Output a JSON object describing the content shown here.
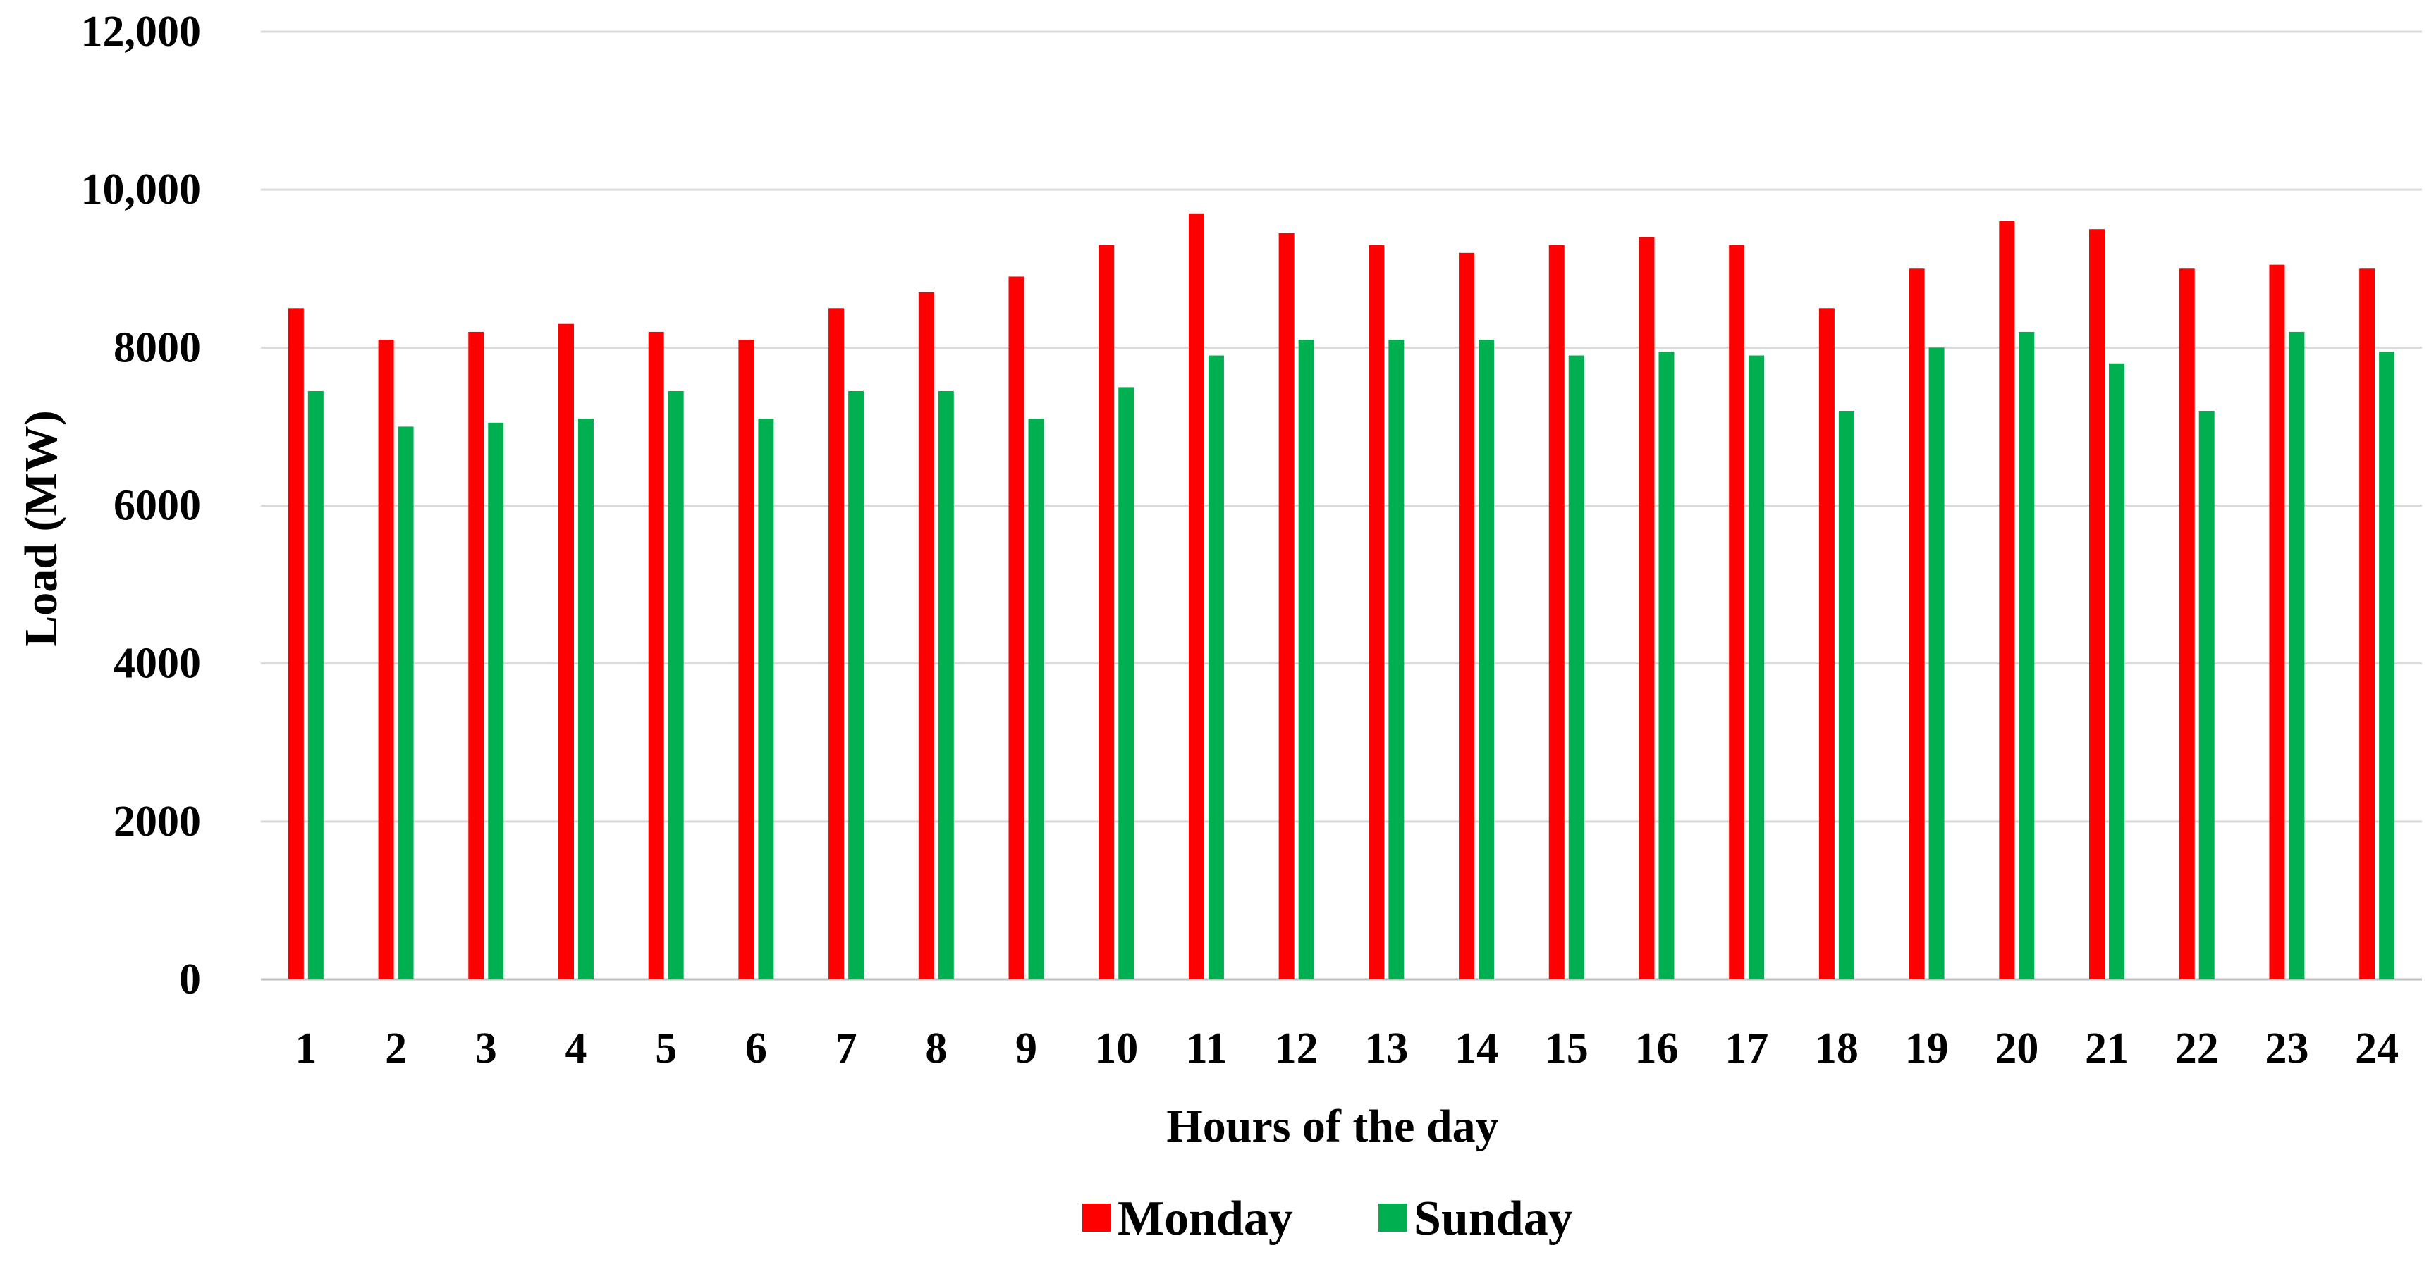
{
  "chart_data": {
    "type": "bar",
    "title": "",
    "xlabel": "Hours of the day",
    "ylabel": "Load (MW)",
    "categories": [
      "1",
      "2",
      "3",
      "4",
      "5",
      "6",
      "7",
      "8",
      "9",
      "10",
      "11",
      "12",
      "13",
      "14",
      "15",
      "16",
      "17",
      "18",
      "19",
      "20",
      "21",
      "22",
      "23",
      "24"
    ],
    "series": [
      {
        "name": "Monday",
        "color": "#ff0000",
        "values": [
          8500,
          8100,
          8200,
          8300,
          8200,
          8100,
          8500,
          8700,
          8900,
          9300,
          9700,
          9450,
          9300,
          9200,
          9300,
          9400,
          9300,
          8500,
          9000,
          9600,
          9500,
          9000,
          9050,
          9000
        ]
      },
      {
        "name": "Sunday",
        "color": "#00b050",
        "values": [
          7450,
          7000,
          7050,
          7100,
          7450,
          7100,
          7450,
          7450,
          7100,
          7500,
          7900,
          8100,
          8100,
          8100,
          7900,
          7950,
          7900,
          7200,
          8000,
          8200,
          7800,
          7200,
          8200,
          7950
        ]
      }
    ],
    "ylim": [
      0,
      12000
    ],
    "yticks": [
      0,
      2000,
      4000,
      6000,
      8000,
      10000,
      12000
    ],
    "ytick_labels": [
      "0",
      "2000",
      "4000",
      "6000",
      "8000",
      "10,000",
      "12,000"
    ],
    "grid": true,
    "legend_position": "bottom-center"
  }
}
